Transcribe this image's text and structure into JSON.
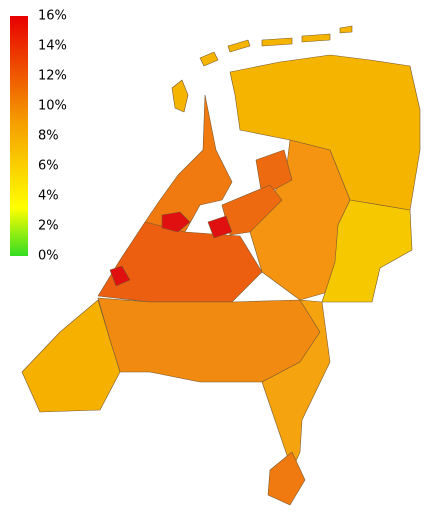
{
  "legend": {
    "labels": [
      "16%",
      "14%",
      "12%",
      "10%",
      "8%",
      "6%",
      "4%",
      "2%",
      "0%"
    ]
  }
}
